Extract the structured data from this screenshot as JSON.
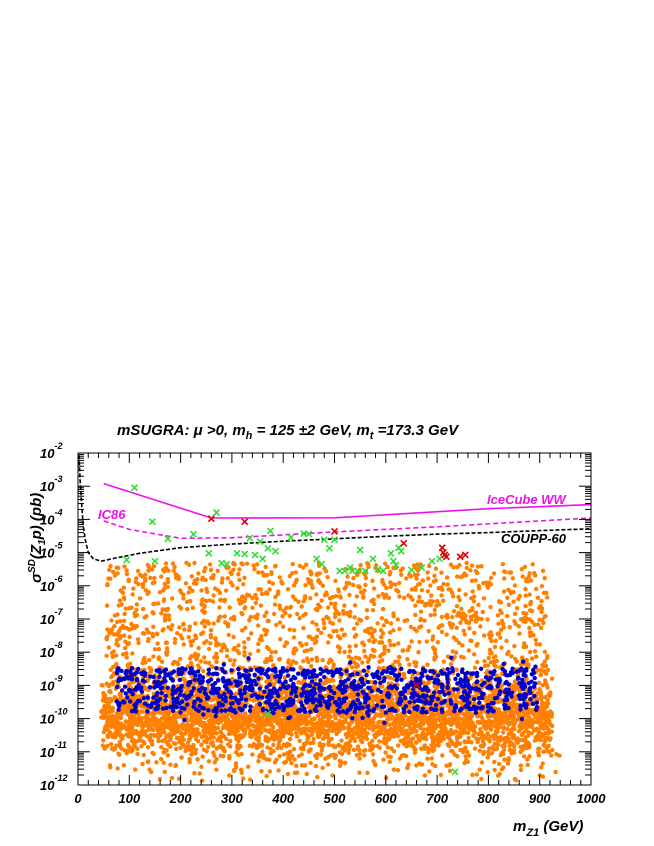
{
  "chart_data": {
    "type": "scatter",
    "title": {
      "prefix": "mSUGRA: ",
      "mu_cond": "μ >0, m",
      "h_sub": "h",
      "h_val": " = 125 ±2 GeV, m",
      "t_sub": "t",
      "t_val": " =173.3 GeV"
    },
    "xlabel": {
      "main": "m",
      "sub": "Z1",
      "unit": " (GeV)"
    },
    "ylabel": {
      "sigma": "σ",
      "sup": "SD",
      "arg": "(Z",
      "arg_sub": "1",
      "arg_end": "p) (pb)"
    },
    "xlim": [
      0,
      1000
    ],
    "ylim_log10": [
      -12,
      -2
    ],
    "log_y": true,
    "x_ticks": [
      "0",
      "100",
      "200",
      "300",
      "400",
      "500",
      "600",
      "700",
      "800",
      "900",
      "1000"
    ],
    "y_tick_base": "10",
    "y_tick_exps": [
      "-12",
      "-11",
      "-10",
      "-9",
      "-8",
      "-7",
      "-6",
      "-5",
      "-4",
      "-3",
      "-2"
    ],
    "colors": {
      "orange": "#ff8000",
      "blue": "#0000cc",
      "green": "#33dd33",
      "red": "#dd0000",
      "magenta": "#ee11ee",
      "black": "#000000"
    },
    "curve_labels": {
      "icecube": "IceCube WW",
      "ic86": "IC86",
      "coupp": "COUPP-60"
    },
    "curves": {
      "icecube_ww": [
        [
          50,
          0.0012
        ],
        [
          260,
          0.00011
        ],
        [
          500,
          0.000112
        ],
        [
          800,
          0.00021
        ],
        [
          1000,
          0.00028
        ]
      ],
      "ic86": [
        [
          50,
          9e-05
        ],
        [
          100,
          5e-05
        ],
        [
          200,
          2.7e-05
        ],
        [
          300,
          2.8e-05
        ],
        [
          500,
          4.2e-05
        ],
        [
          700,
          6e-05
        ],
        [
          900,
          9e-05
        ],
        [
          1000,
          0.00011
        ]
      ],
      "coupp_60": [
        [
          2,
          0.0085
        ],
        [
          4,
          0.0015
        ],
        [
          7,
          0.0003
        ],
        [
          10,
          7e-05
        ],
        [
          14,
          2.5e-05
        ],
        [
          20,
          1e-05
        ],
        [
          30,
          6.5e-06
        ],
        [
          45,
          5.5e-06
        ],
        [
          70,
          6.7e-06
        ],
        [
          120,
          9.5e-06
        ],
        [
          200,
          1.4e-05
        ],
        [
          300,
          1.8e-05
        ],
        [
          400,
          2.2e-05
        ],
        [
          500,
          2.6e-05
        ],
        [
          600,
          3.1e-05
        ],
        [
          700,
          3.6e-05
        ],
        [
          800,
          4e-05
        ],
        [
          900,
          4.6e-05
        ],
        [
          1000,
          5.2e-05
        ]
      ]
    },
    "green_crosses": [
      [
        95,
        6e-06
      ],
      [
        110,
        0.0009
      ],
      [
        145,
        8.5e-05
      ],
      [
        150,
        5.5e-06
      ],
      [
        175,
        2.6e-05
      ],
      [
        225,
        3.6e-05
      ],
      [
        255,
        9.5e-06
      ],
      [
        270,
        0.00016
      ],
      [
        280,
        4.8e-06
      ],
      [
        290,
        4.5e-06
      ],
      [
        310,
        9.5e-06
      ],
      [
        325,
        9e-06
      ],
      [
        335,
        2.75e-05
      ],
      [
        345,
        8.5e-06
      ],
      [
        355,
        2.15e-05
      ],
      [
        360,
        6.5e-06
      ],
      [
        370,
        1.35e-05
      ],
      [
        375,
        4.5e-05
      ],
      [
        385,
        1.1e-05
      ],
      [
        415,
        2.85e-05
      ],
      [
        440,
        3.75e-05
      ],
      [
        450,
        3.65e-05
      ],
      [
        465,
        6.5e-06
      ],
      [
        480,
        2.45e-05
      ],
      [
        475,
        4.5e-06
      ],
      [
        490,
        1.35e-05
      ],
      [
        500,
        2.45e-05
      ],
      [
        510,
        2.8e-06
      ],
      [
        520,
        2.8e-06
      ],
      [
        530,
        3.5e-06
      ],
      [
        535,
        2.8e-06
      ],
      [
        545,
        2.8e-06
      ],
      [
        550,
        1.2e-05
      ],
      [
        560,
        2.8e-06
      ],
      [
        575,
        6.5e-06
      ],
      [
        585,
        3.2e-06
      ],
      [
        595,
        2.8e-06
      ],
      [
        610,
        9.5e-06
      ],
      [
        615,
        5.5e-06
      ],
      [
        620,
        4.25e-06
      ],
      [
        625,
        1.4e-05
      ],
      [
        630,
        1.1e-05
      ],
      [
        650,
        3e-06
      ],
      [
        670,
        3.5e-06
      ],
      [
        690,
        5.5e-06
      ],
      [
        705,
        6.5e-06
      ],
      [
        370,
        1.4e-10
      ],
      [
        735,
        2.5e-12
      ]
    ],
    "red_crosses": [
      [
        260,
        0.000105
      ],
      [
        325,
        8.5e-05
      ],
      [
        500,
        4.35e-05
      ],
      [
        635,
        1.9e-05
      ],
      [
        710,
        1.4e-05
      ],
      [
        712,
        1e-05
      ],
      [
        715,
        8.5e-06
      ],
      [
        718,
        7.5e-06
      ],
      [
        745,
        7.5e-06
      ],
      [
        755,
        8.5e-06
      ],
      [
        660,
        1e-09
      ]
    ]
  }
}
